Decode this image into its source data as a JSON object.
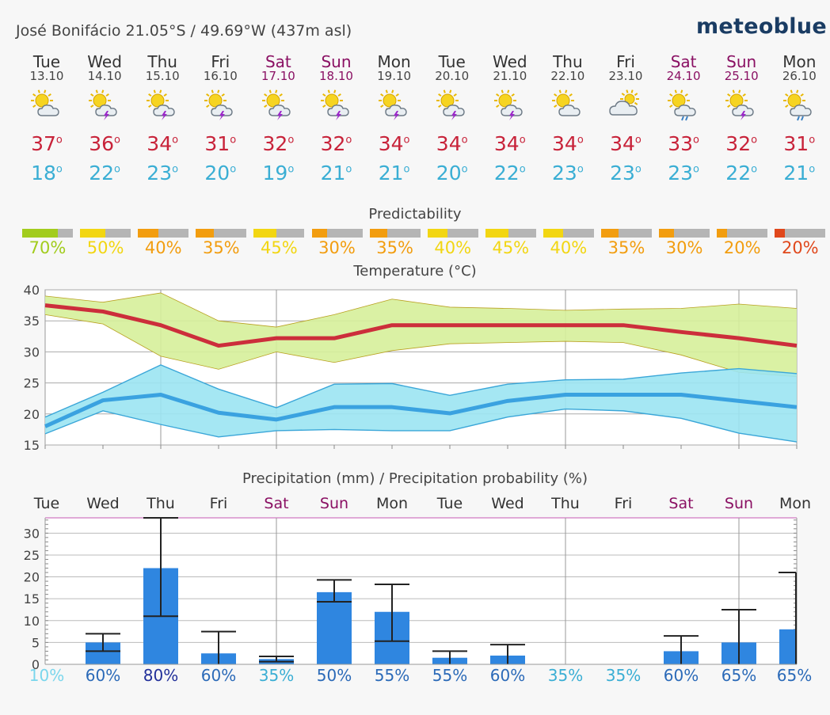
{
  "header": {
    "location": "José Bonifácio  21.05°S / 49.69°W (437m asl)",
    "brand": "meteoblue"
  },
  "days": [
    {
      "name": "Tue",
      "date": "13.10",
      "weekend": false,
      "icon": "sun-cloud-icon",
      "max": "37",
      "min": "18"
    },
    {
      "name": "Wed",
      "date": "14.10",
      "weekend": false,
      "icon": "sun-thunderstorm-icon",
      "max": "36",
      "min": "22"
    },
    {
      "name": "Thu",
      "date": "15.10",
      "weekend": false,
      "icon": "sun-thunderstorm-icon",
      "max": "34",
      "min": "23"
    },
    {
      "name": "Fri",
      "date": "16.10",
      "weekend": false,
      "icon": "sun-thunderstorm-icon",
      "max": "31",
      "min": "20"
    },
    {
      "name": "Sat",
      "date": "17.10",
      "weekend": true,
      "icon": "sun-thunderstorm-icon",
      "max": "32",
      "min": "19"
    },
    {
      "name": "Sun",
      "date": "18.10",
      "weekend": true,
      "icon": "sun-thunderstorm-icon",
      "max": "32",
      "min": "21"
    },
    {
      "name": "Mon",
      "date": "19.10",
      "weekend": false,
      "icon": "sun-thunderstorm-icon",
      "max": "34",
      "min": "21"
    },
    {
      "name": "Tue",
      "date": "20.10",
      "weekend": false,
      "icon": "sun-thunderstorm-icon",
      "max": "34",
      "min": "20"
    },
    {
      "name": "Wed",
      "date": "21.10",
      "weekend": false,
      "icon": "sun-thunderstorm-icon",
      "max": "34",
      "min": "22"
    },
    {
      "name": "Thu",
      "date": "22.10",
      "weekend": false,
      "icon": "sun-cloud-icon",
      "max": "34",
      "min": "23"
    },
    {
      "name": "Fri",
      "date": "23.10",
      "weekend": false,
      "icon": "cloudy-sun-icon",
      "max": "34",
      "min": "23"
    },
    {
      "name": "Sat",
      "date": "24.10",
      "weekend": true,
      "icon": "sun-rain-icon",
      "max": "33",
      "min": "23"
    },
    {
      "name": "Sun",
      "date": "25.10",
      "weekend": true,
      "icon": "sun-thunderstorm-icon",
      "max": "32",
      "min": "22"
    },
    {
      "name": "Mon",
      "date": "26.10",
      "weekend": false,
      "icon": "sun-rain-icon",
      "max": "31",
      "min": "21"
    }
  ],
  "predictability": {
    "title": "Predictability",
    "items": [
      {
        "label": "70%",
        "value": 70,
        "color": "#a2cc1d"
      },
      {
        "label": "50%",
        "value": 50,
        "color": "#f2d612"
      },
      {
        "label": "40%",
        "value": 40,
        "color": "#f29d0f"
      },
      {
        "label": "35%",
        "value": 35,
        "color": "#f29d0f"
      },
      {
        "label": "45%",
        "value": 45,
        "color": "#f2d612"
      },
      {
        "label": "30%",
        "value": 30,
        "color": "#f29d0f"
      },
      {
        "label": "35%",
        "value": 35,
        "color": "#f29d0f"
      },
      {
        "label": "40%",
        "value": 40,
        "color": "#f2d612"
      },
      {
        "label": "45%",
        "value": 45,
        "color": "#f2d612"
      },
      {
        "label": "40%",
        "value": 40,
        "color": "#f2d612"
      },
      {
        "label": "35%",
        "value": 35,
        "color": "#f29d0f"
      },
      {
        "label": "30%",
        "value": 30,
        "color": "#f29d0f"
      },
      {
        "label": "20%",
        "value": 20,
        "color": "#f29d0f"
      },
      {
        "label": "20%",
        "value": 20,
        "color": "#e0481c"
      }
    ]
  },
  "chart_data": [
    {
      "type": "line",
      "title": "Temperature (°C)",
      "x": [
        "Tue",
        "Wed",
        "Thu",
        "Fri",
        "Sat",
        "Sun",
        "Mon",
        "Tue",
        "Wed",
        "Thu",
        "Fri",
        "Sat",
        "Sun",
        "Mon"
      ],
      "ylim": [
        15,
        40
      ],
      "yticks": [
        15,
        20,
        25,
        30,
        35,
        40
      ],
      "grid": true,
      "series": [
        {
          "values": [
            37.5,
            36.5,
            34.3,
            31,
            32.2,
            32.2,
            34.3,
            34.3,
            34.3,
            34.3,
            34.3,
            33.2,
            32.2,
            31
          ],
          "upper": [
            39,
            38,
            39.5,
            35,
            34,
            36,
            38.5,
            37.2,
            37,
            36.7,
            36.9,
            37,
            37.7,
            37
          ],
          "lower": [
            36,
            34.5,
            29.3,
            27.2,
            30,
            28.3,
            30.2,
            31.3,
            31.5,
            31.7,
            31.5,
            29.5,
            26.7,
            26
          ]
        },
        {
          "values": [
            18,
            22.2,
            23.1,
            20.2,
            19.1,
            21.1,
            21.1,
            20.1,
            22.1,
            23.1,
            23.1,
            23.1,
            22.1,
            21.1
          ],
          "upper": [
            19.5,
            23.5,
            27.9,
            24,
            21,
            24.8,
            24.9,
            23,
            24.8,
            25.5,
            25.6,
            26.6,
            27.3,
            26.5
          ],
          "lower": [
            16.8,
            20.5,
            18.3,
            16.3,
            17.3,
            17.5,
            17.3,
            17.3,
            19.5,
            20.8,
            20.5,
            19.3,
            16.9,
            15.5
          ]
        }
      ]
    },
    {
      "type": "bar",
      "title": "Precipitation (mm) / Precipitation probability (%)",
      "categories": [
        "Tue",
        "Wed",
        "Thu",
        "Fri",
        "Sat",
        "Sun",
        "Mon",
        "Tue",
        "Wed",
        "Thu",
        "Fri",
        "Sat",
        "Sun",
        "Mon"
      ],
      "weekend": [
        false,
        false,
        false,
        false,
        true,
        true,
        false,
        false,
        false,
        false,
        false,
        true,
        true,
        false
      ],
      "values": [
        0,
        5,
        22,
        2.5,
        1.2,
        16.5,
        12,
        1.5,
        2,
        0,
        0,
        3,
        5,
        8
      ],
      "error_low": [
        0,
        3,
        11,
        0,
        0.6,
        14.3,
        5.3,
        0,
        0,
        0,
        0,
        0,
        0,
        0
      ],
      "error_high": [
        0,
        7,
        33.5,
        7.5,
        1.8,
        19.3,
        18.3,
        3,
        4.5,
        0,
        0,
        6.5,
        12.5,
        21
      ],
      "ylim": [
        0,
        33.5
      ],
      "yticks": [
        0,
        5,
        10,
        15,
        20,
        25,
        30
      ],
      "probabilities": [
        {
          "label": "10%",
          "color": "#7ad6ec"
        },
        {
          "label": "60%",
          "color": "#2b6ab8"
        },
        {
          "label": "80%",
          "color": "#22309a"
        },
        {
          "label": "60%",
          "color": "#2b6ab8"
        },
        {
          "label": "35%",
          "color": "#3aaed4"
        },
        {
          "label": "50%",
          "color": "#2b6ab8"
        },
        {
          "label": "55%",
          "color": "#2b6ab8"
        },
        {
          "label": "55%",
          "color": "#2b6ab8"
        },
        {
          "label": "60%",
          "color": "#2b6ab8"
        },
        {
          "label": "35%",
          "color": "#3aaed4"
        },
        {
          "label": "35%",
          "color": "#3aaed4"
        },
        {
          "label": "60%",
          "color": "#2b6ab8"
        },
        {
          "label": "65%",
          "color": "#2b6ab8"
        },
        {
          "label": "65%",
          "color": "#2b6ab8"
        }
      ]
    }
  ]
}
